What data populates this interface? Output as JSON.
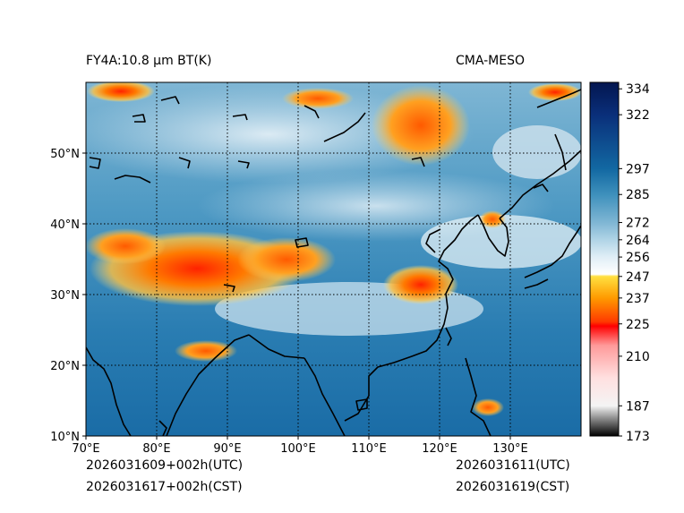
{
  "figure": {
    "title_left": "FY4A:10.8 µm BT(K)",
    "title_right": "CMA-MESO",
    "init_utc": "2026031609+002h(UTC)",
    "init_cst": "2026031617+002h(CST)",
    "valid_utc": "2026031611(UTC)",
    "valid_cst": "2026031619(CST)"
  },
  "map": {
    "lon_range": [
      70,
      140
    ],
    "lat_range": [
      10,
      60
    ],
    "lon_ticks": [
      70,
      80,
      90,
      100,
      110,
      120,
      130
    ],
    "lat_ticks": [
      10,
      20,
      30,
      40,
      50
    ],
    "lon_labels": [
      "70°E",
      "80°E",
      "90°E",
      "100°E",
      "110°E",
      "120°E",
      "130°E"
    ],
    "lat_labels": [
      "10°N",
      "20°N",
      "30°N",
      "40°N",
      "50°N"
    ],
    "gridlines": "dotted"
  },
  "colorbar": {
    "min": 173,
    "max": 337,
    "tick_values": [
      334,
      322,
      297,
      285,
      272,
      264,
      256,
      247,
      237,
      225,
      210,
      187,
      173
    ],
    "tick_labels": [
      "334",
      "322",
      "297",
      "285",
      "272",
      "264",
      "256",
      "247",
      "237",
      "225",
      "210",
      "187",
      "173"
    ],
    "stops": [
      {
        "value": 173,
        "color": "#000000"
      },
      {
        "value": 181,
        "color": "#8a8a8a"
      },
      {
        "value": 187,
        "color": "#f4f4f4"
      },
      {
        "value": 200,
        "color": "#ffe0e0"
      },
      {
        "value": 215,
        "color": "#ff9a9a"
      },
      {
        "value": 224,
        "color": "#ff0000"
      },
      {
        "value": 226,
        "color": "#ff3a00"
      },
      {
        "value": 237,
        "color": "#ff9a00"
      },
      {
        "value": 247,
        "color": "#ffe040"
      },
      {
        "value": 248,
        "color": "#ffffff"
      },
      {
        "value": 256,
        "color": "#e0eef6"
      },
      {
        "value": 264,
        "color": "#b0d4e6"
      },
      {
        "value": 272,
        "color": "#7fb6d4"
      },
      {
        "value": 285,
        "color": "#3e90bc"
      },
      {
        "value": 297,
        "color": "#1268a2"
      },
      {
        "value": 322,
        "color": "#0a2f7a"
      },
      {
        "value": 337,
        "color": "#031650"
      }
    ]
  }
}
